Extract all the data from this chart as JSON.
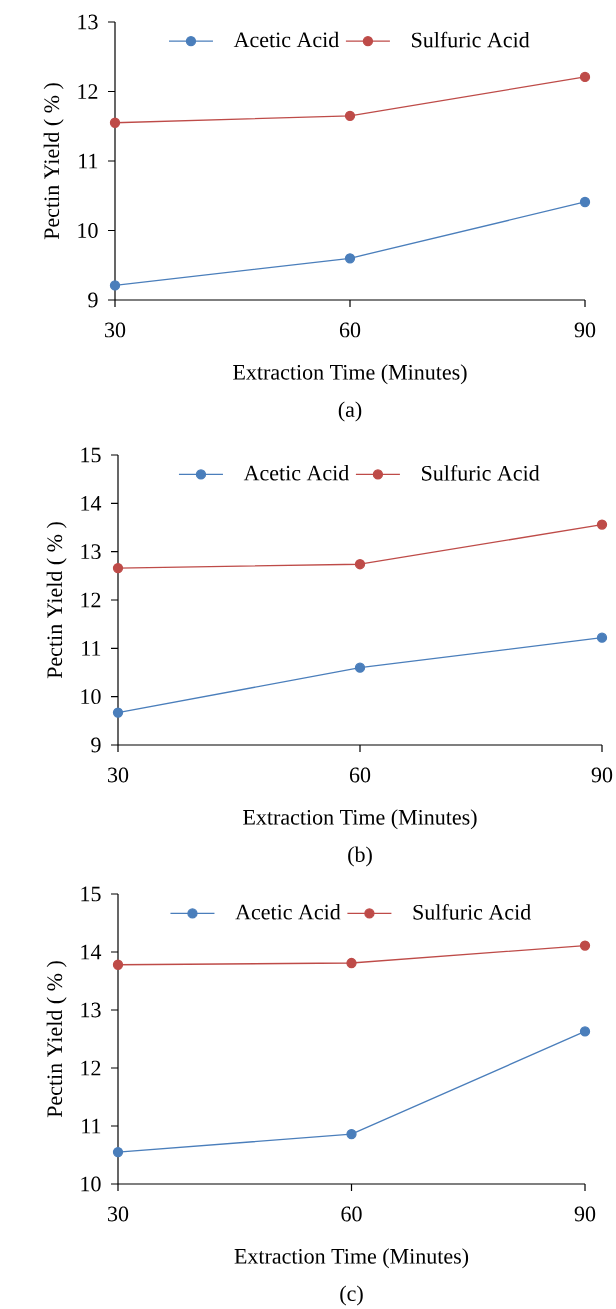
{
  "chart_data": [
    {
      "type": "line",
      "xlabel": "Extraction Time (Minutes)",
      "ylabel": "Pectin Yield ( % )",
      "annotations": [
        "(a)"
      ],
      "x": [
        30,
        60,
        90
      ],
      "xlim": [
        30,
        90
      ],
      "xticks": [
        30,
        60,
        90
      ],
      "ylim": [
        9,
        13
      ],
      "yticks": [
        9,
        10,
        11,
        12,
        13
      ],
      "legend": "top",
      "marker": "circle",
      "line_style": "solid",
      "grid": false,
      "series": [
        {
          "name": "Acetic Acid",
          "color": "#4a7ebb",
          "values": [
            9.21,
            9.6,
            10.41
          ]
        },
        {
          "name": "Sulfuric Acid",
          "color": "#be4b48",
          "values": [
            11.55,
            11.65,
            12.21
          ]
        }
      ]
    },
    {
      "type": "line",
      "xlabel": "Extraction Time (Minutes)",
      "ylabel": "Pectin Yield ( % )",
      "annotations": [
        "(b)"
      ],
      "x": [
        30,
        60,
        90
      ],
      "xlim": [
        30,
        90
      ],
      "xticks": [
        30,
        60,
        90
      ],
      "ylim": [
        9,
        15
      ],
      "yticks": [
        9,
        10,
        11,
        12,
        13,
        14,
        15
      ],
      "legend": "top",
      "marker": "circle",
      "line_style": "solid",
      "grid": false,
      "series": [
        {
          "name": "Acetic Acid",
          "color": "#4a7ebb",
          "values": [
            9.67,
            10.6,
            11.22
          ]
        },
        {
          "name": "Sulfuric Acid",
          "color": "#be4b48",
          "values": [
            12.66,
            12.74,
            13.56
          ]
        }
      ]
    },
    {
      "type": "line",
      "xlabel": "Extraction Time (Minutes)",
      "ylabel": "Pectin Yield ( % )",
      "annotations": [
        "(c)"
      ],
      "x": [
        30,
        60,
        90
      ],
      "xlim": [
        30,
        90
      ],
      "xticks": [
        30,
        60,
        90
      ],
      "ylim": [
        10,
        15
      ],
      "yticks": [
        10,
        11,
        12,
        13,
        14,
        15
      ],
      "legend": "top",
      "marker": "circle",
      "line_style": "solid",
      "grid": false,
      "series": [
        {
          "name": "Acetic Acid",
          "color": "#4a7ebb",
          "values": [
            10.55,
            10.86,
            12.63
          ]
        },
        {
          "name": "Sulfuric Acid",
          "color": "#be4b48",
          "values": [
            13.78,
            13.81,
            14.11
          ]
        }
      ]
    }
  ]
}
